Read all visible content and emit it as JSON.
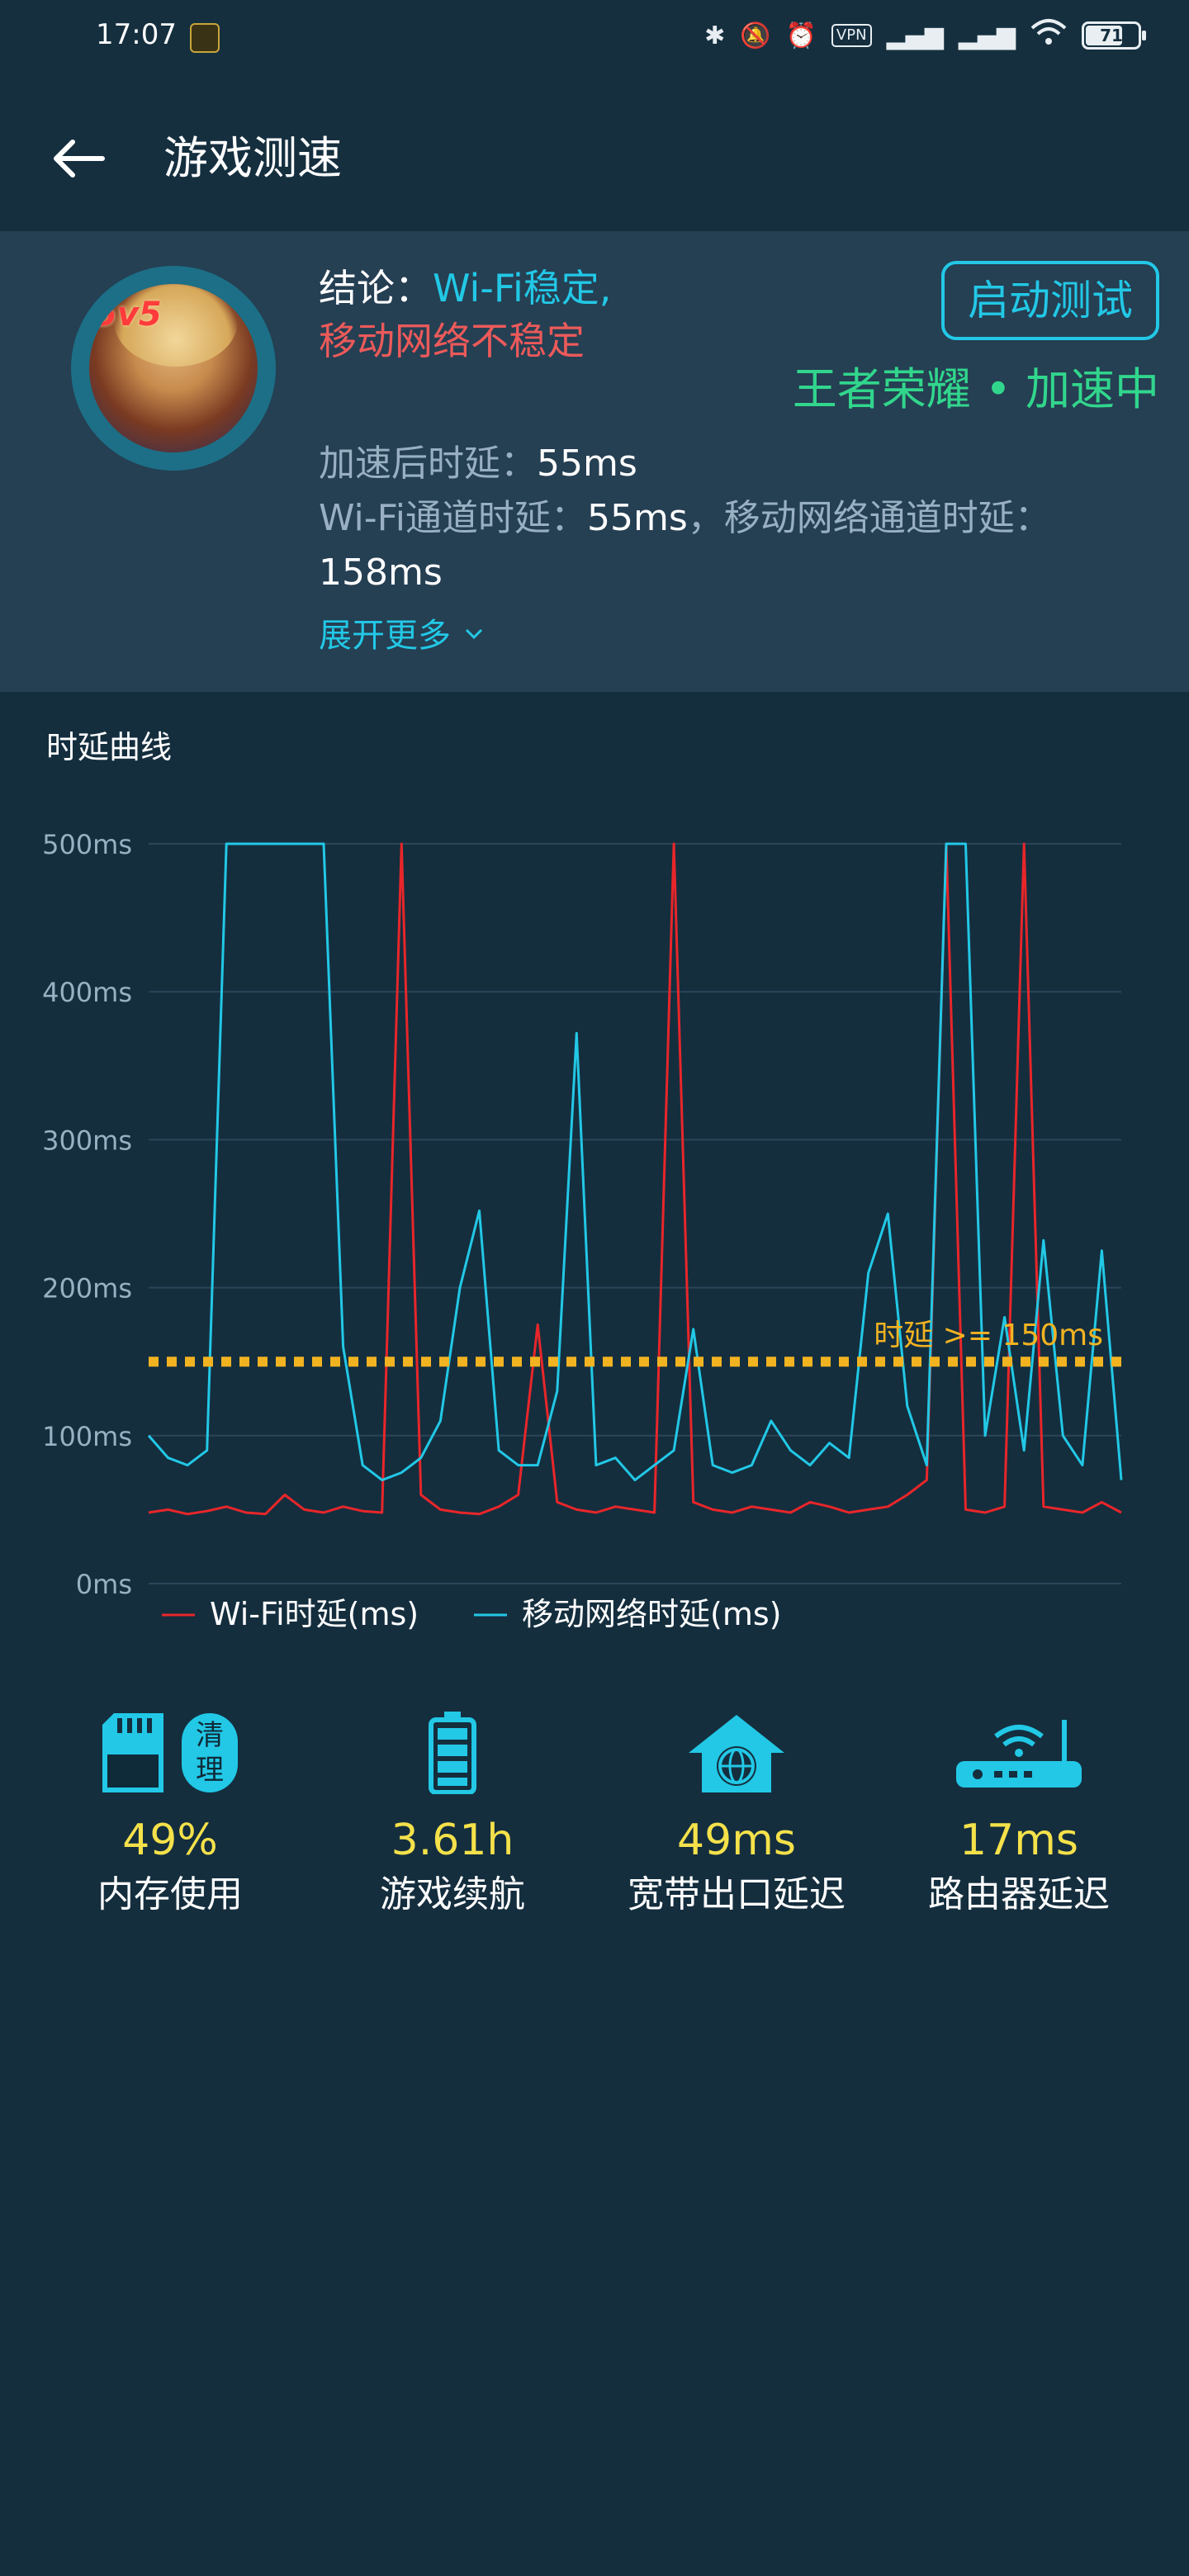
{
  "status_bar": {
    "time": "17:07",
    "vpn": "VPN",
    "battery": "71",
    "battery_fraction": 0.71
  },
  "app_bar": {
    "title": "游戏测速"
  },
  "summary": {
    "conclusion_label": "结论：",
    "conclusion_wifi": "Wi-Fi稳定,",
    "conclusion_mobile": "移动网络不稳定",
    "start_button": "启动测试",
    "game_status": "王者荣耀 • 加速中",
    "latency_label": "加速后时延：",
    "latency_value": "55ms",
    "wifi_latency_label": "Wi-Fi通道时延：",
    "wifi_latency_value": "55ms",
    "mobile_latency_label": "，移动网络通道时延：",
    "mobile_latency_value": "158ms",
    "expand": "展开更多"
  },
  "chart_title": "时延曲线",
  "chart_data": {
    "type": "line",
    "title": "时延曲线",
    "ylim": [
      0,
      500
    ],
    "y_ticks": [
      "0ms",
      "100ms",
      "200ms",
      "300ms",
      "400ms",
      "500ms"
    ],
    "y_tick_values": [
      0,
      100,
      200,
      300,
      400,
      500
    ],
    "threshold": {
      "value": 150,
      "label": "时延 >= 150ms",
      "color": "#f2b321"
    },
    "x": [
      0,
      2,
      4,
      6,
      8,
      10,
      12,
      14,
      16,
      18,
      20,
      22,
      24,
      26,
      28,
      30,
      32,
      34,
      36,
      38,
      40,
      42,
      44,
      46,
      48,
      50,
      52,
      54,
      56,
      58,
      60,
      62,
      64,
      66,
      68,
      70,
      72,
      74,
      76,
      78,
      80,
      82,
      84,
      86,
      88,
      90,
      92,
      94,
      96,
      98,
      100
    ],
    "legend_position": "bottom-left",
    "series": [
      {
        "name": "Wi-Fi时延(ms)",
        "color": "#e8262a",
        "values": [
          48,
          50,
          47,
          49,
          52,
          48,
          47,
          60,
          50,
          48,
          52,
          49,
          48,
          500,
          60,
          50,
          48,
          47,
          52,
          60,
          175,
          55,
          50,
          48,
          52,
          50,
          48,
          500,
          55,
          50,
          48,
          52,
          50,
          48,
          55,
          52,
          48,
          50,
          52,
          60,
          70,
          500,
          50,
          48,
          52,
          500,
          52,
          50,
          48,
          55,
          48
        ]
      },
      {
        "name": "移动网络时延(ms)",
        "color": "#22c8e6",
        "values": [
          100,
          85,
          80,
          90,
          500,
          500,
          500,
          500,
          500,
          500,
          160,
          80,
          70,
          75,
          85,
          110,
          200,
          252,
          90,
          80,
          80,
          130,
          372,
          80,
          85,
          70,
          80,
          90,
          172,
          80,
          75,
          80,
          110,
          90,
          80,
          95,
          85,
          210,
          250,
          120,
          80,
          500,
          500,
          100,
          180,
          90,
          232,
          100,
          80,
          225,
          70
        ]
      }
    ]
  },
  "stats": [
    {
      "value": "49%",
      "label": "内存使用",
      "icon": "sd-card-icon",
      "button": [
        "清",
        "理"
      ]
    },
    {
      "value": "3.61h",
      "label": "游戏续航",
      "icon": "battery-icon"
    },
    {
      "value": "49ms",
      "label": "宽带出口延迟",
      "icon": "home-globe-icon"
    },
    {
      "value": "17ms",
      "label": "路由器延迟",
      "icon": "router-icon"
    }
  ],
  "colors": {
    "accent": "#22c8e6",
    "danger": "#ec5a5a",
    "success": "#31d68c",
    "highlight": "#f5e14a",
    "background": "#142e3e",
    "card": "#253f53"
  }
}
